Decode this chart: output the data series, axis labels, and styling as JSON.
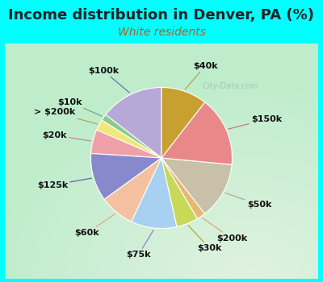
{
  "title": "Income distribution in Denver, PA (%)",
  "subtitle": "White residents",
  "title_color": "#222222",
  "subtitle_color": "#b06020",
  "background_outer": "#00ffff",
  "watermark": "City-Data.com",
  "labels": [
    "$100k",
    "$10k",
    "> $200k",
    "$20k",
    "$125k",
    "$60k",
    "$75k",
    "$30k",
    "$200k",
    "$50k",
    "$150k",
    "$40k"
  ],
  "sizes": [
    14.5,
    1.5,
    2.5,
    5.5,
    11.0,
    8.0,
    10.5,
    5.0,
    2.0,
    13.0,
    16.0,
    10.5
  ],
  "colors": [
    "#b8a8d8",
    "#88cc88",
    "#f0e87a",
    "#f0a0a8",
    "#8888cc",
    "#f5c0a0",
    "#a8d0f0",
    "#c8d858",
    "#e8b870",
    "#c8c0a8",
    "#e88888",
    "#c8a030"
  ],
  "startangle": 90,
  "label_fontsize": 8,
  "title_fontsize": 13,
  "subtitle_fontsize": 10,
  "bg_colors": [
    "#e0f5e8",
    "#d0eed8",
    "#c8e8d0"
  ],
  "label_colors": [
    "#7070aa",
    "#70aa70",
    "#aaaa50",
    "#cc8888",
    "#6666aa",
    "#ddaa88",
    "#8888cc",
    "#aaaa50",
    "#ddaa70",
    "#aaaa90",
    "#cc7777",
    "#aaaa50"
  ]
}
